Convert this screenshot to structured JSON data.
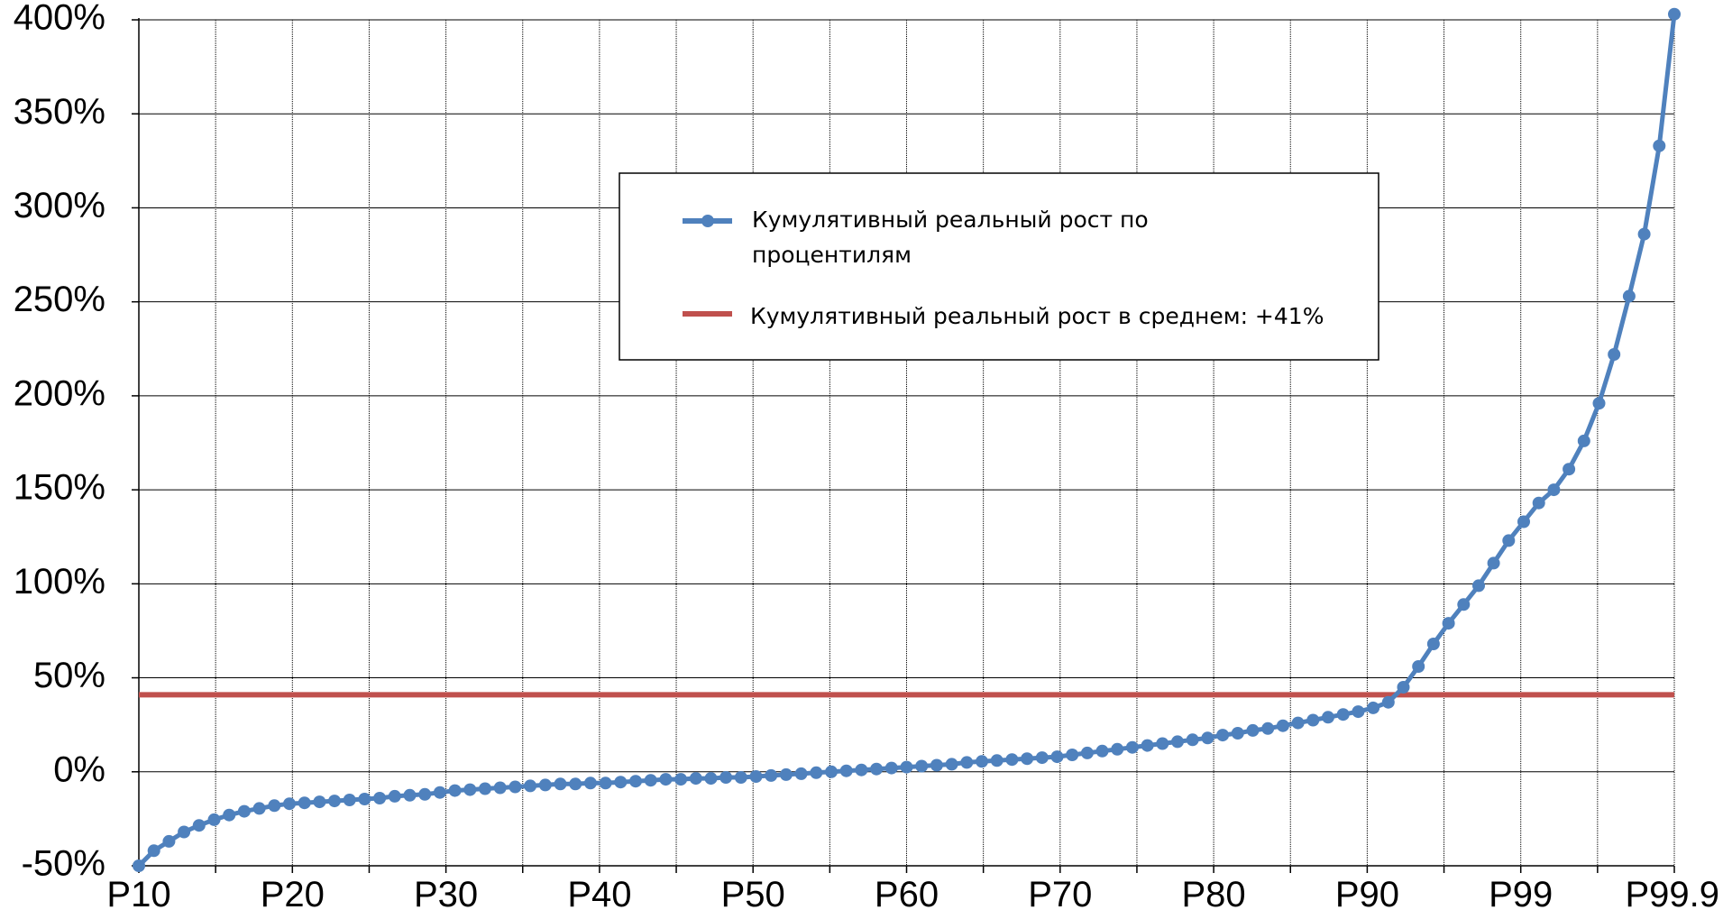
{
  "chart_data": {
    "type": "line",
    "title": "",
    "xlabel": "",
    "ylabel": "",
    "x_tick_labels": [
      "P10",
      "P20",
      "P30",
      "P40",
      "P50",
      "P60",
      "P70",
      "P80",
      "P90",
      "P99",
      "P99.9"
    ],
    "y_tick_labels": [
      "-50%",
      "0%",
      "50%",
      "100%",
      "150%",
      "200%",
      "250%",
      "300%",
      "350%",
      "400%"
    ],
    "ylim": [
      -50,
      400
    ],
    "y_unit": "%",
    "grid": true,
    "legend_position": "top-center",
    "legend": [
      {
        "lines": [
          "Кумулятивный реальный рост по",
          "процентилям"
        ]
      },
      {
        "lines": [
          "Кумулятивный реальный рост в среднем: +41%"
        ]
      }
    ],
    "series": [
      {
        "type": "line-marker",
        "color": "#4F81BD",
        "values": [
          -50,
          -42,
          -37,
          -32,
          -28.5,
          -25.5,
          -23,
          -21,
          -19.5,
          -18,
          -17,
          -16.5,
          -16,
          -15.5,
          -15,
          -14.5,
          -14,
          -13,
          -12.5,
          -12,
          -11,
          -10,
          -9.5,
          -9,
          -8.5,
          -8,
          -7.5,
          -7,
          -6.5,
          -6.5,
          -6,
          -6,
          -5.5,
          -5,
          -4.5,
          -4,
          -4,
          -3.5,
          -3.5,
          -3,
          -3,
          -2.5,
          -2,
          -1.5,
          -1,
          -0.5,
          0,
          0.5,
          1,
          1.5,
          2,
          2.5,
          3,
          3.5,
          4,
          5,
          5.5,
          6,
          6.5,
          7,
          7.5,
          8,
          9,
          10,
          11,
          12,
          13,
          14,
          15,
          16,
          17,
          18,
          19.5,
          20.5,
          22,
          23,
          24.5,
          26,
          27.5,
          29,
          30.5,
          32,
          34,
          37,
          45,
          56,
          68,
          79,
          89,
          99,
          111,
          123,
          133,
          143,
          150,
          161,
          176,
          196,
          222,
          253,
          286,
          333,
          403
        ]
      },
      {
        "type": "horizontal-line",
        "color": "#C0504D",
        "value": 41
      }
    ]
  }
}
